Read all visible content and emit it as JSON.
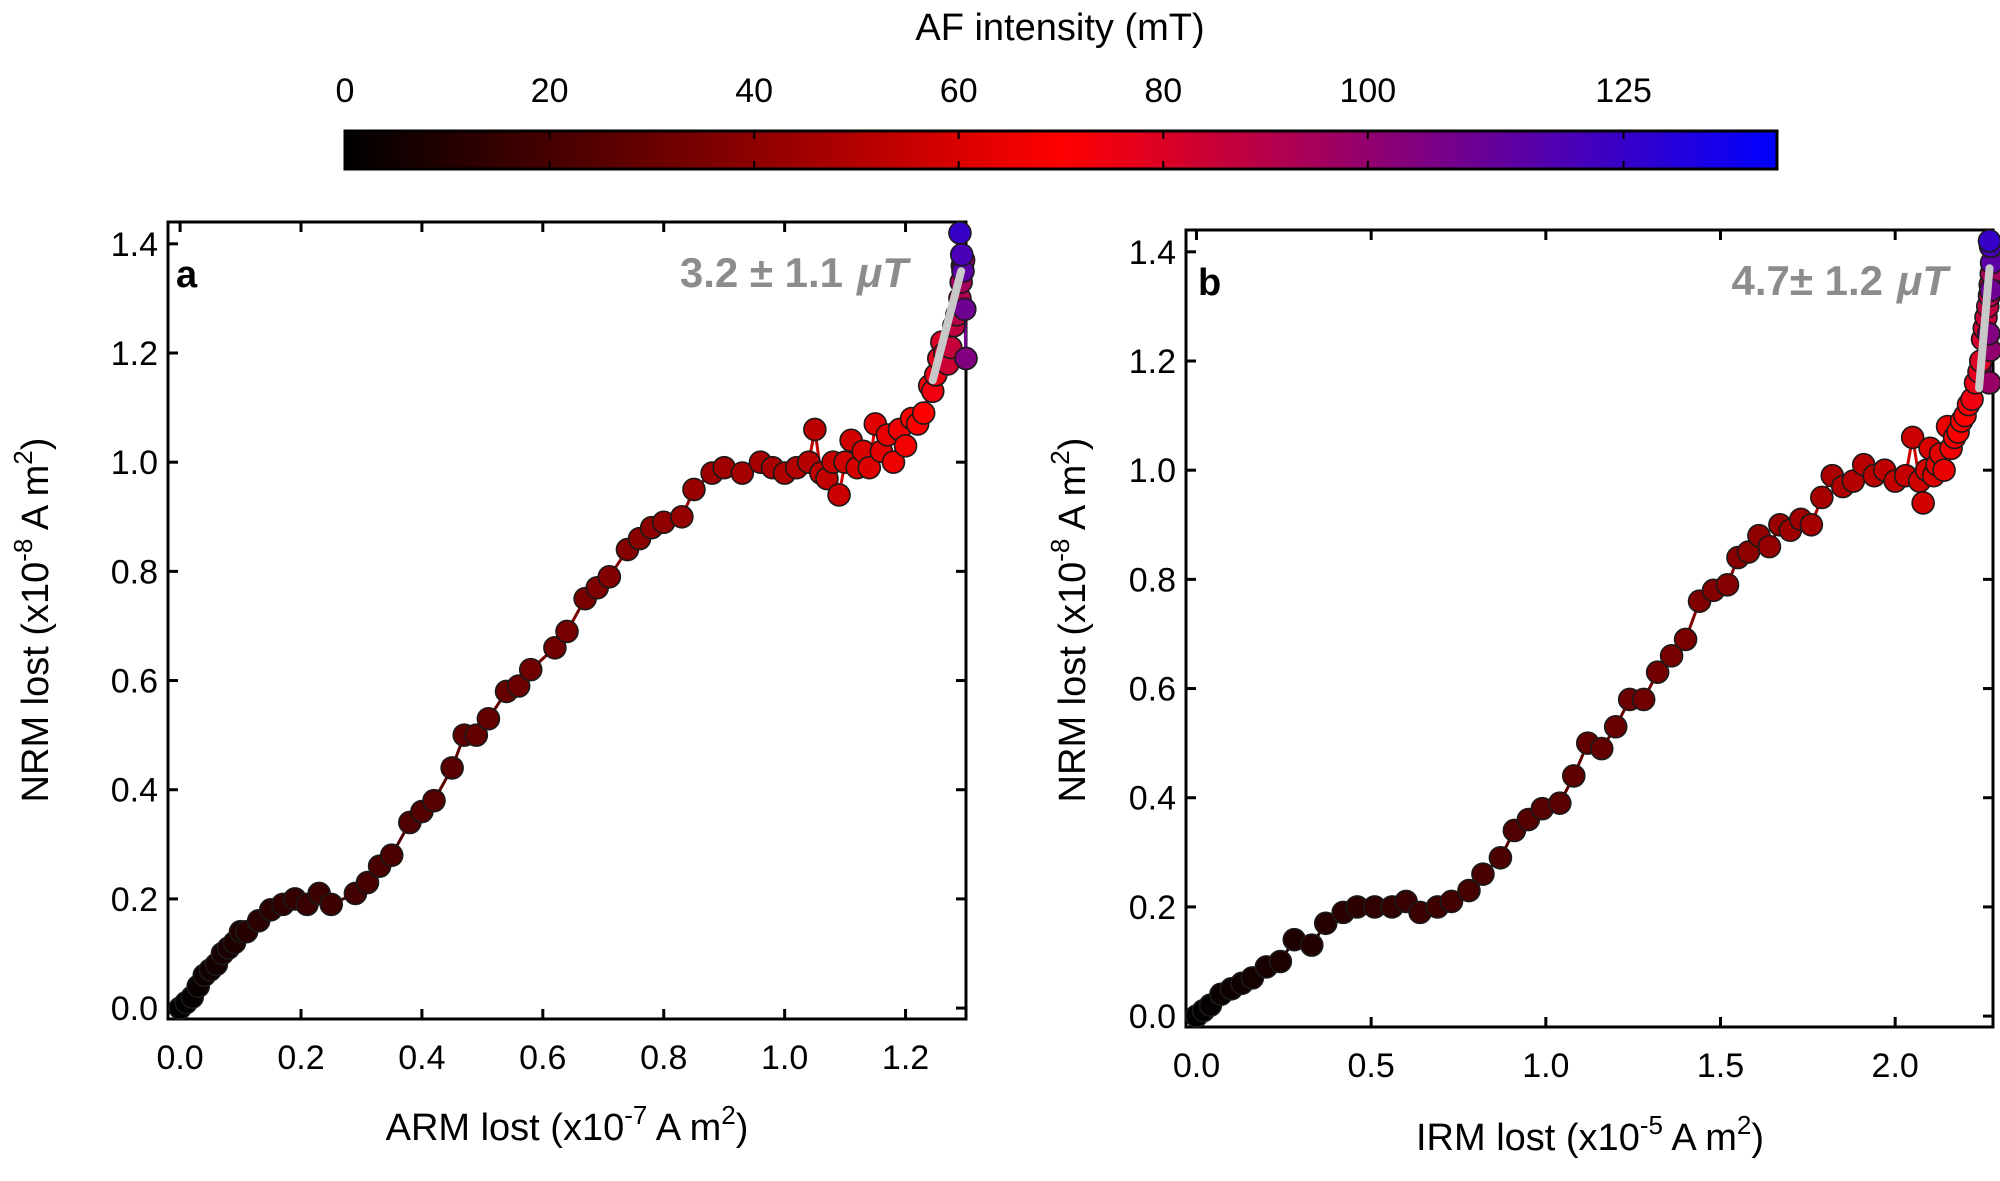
{
  "colorbar": {
    "title": "AF intensity (mT)",
    "tick_labels": [
      "0",
      "20",
      "40",
      "60",
      "80",
      "100",
      "125"
    ],
    "tick_values": [
      0,
      20,
      40,
      60,
      80,
      100,
      125
    ],
    "ticks": [
      {
        "label": "0",
        "value": 0
      },
      {
        "label": "20",
        "value": 20
      },
      {
        "label": "40",
        "value": 40
      },
      {
        "label": "60",
        "value": 60
      },
      {
        "label": "80",
        "value": 80
      },
      {
        "label": "100",
        "value": 100
      },
      {
        "label": "125",
        "value": 125
      }
    ],
    "colormap": [
      "#000000",
      "#7a0000",
      "#ff0000",
      "#800080",
      "#0000ff"
    ],
    "range": [
      0,
      140
    ]
  },
  "chart_data": [
    {
      "type": "scatter",
      "panel_label": "a",
      "annotation": "3.2 ± 1.1 μT",
      "annotation_main": "3.2 ± 1.1",
      "annotation_unit": "μT",
      "xlabel": "ARM lost (x10",
      "xlabel_exp": "-7",
      "xlabel_unit": " A m",
      "xlabel_unit_exp": "2",
      "xlabel_close": ")",
      "ylabel": "NRM lost (x10",
      "ylabel_exp": "-8",
      "ylabel_unit": " A m",
      "ylabel_unit_exp": "2",
      "ylabel_close": ")",
      "xlim": [
        -0.02,
        1.3
      ],
      "ylim": [
        -0.02,
        1.44
      ],
      "xticks": [
        0.0,
        0.2,
        0.4,
        0.6,
        0.8,
        1.0,
        1.2
      ],
      "xtick_labels": [
        "0.0",
        "0.2",
        "0.4",
        "0.6",
        "0.8",
        "1.0",
        "1.2"
      ],
      "yticks": [
        0.0,
        0.2,
        0.4,
        0.6,
        0.8,
        1.0,
        1.2,
        1.4
      ],
      "ytick_labels": [
        "0.0",
        "0.2",
        "0.4",
        "0.6",
        "0.8",
        "1.0",
        "1.2",
        "1.4"
      ],
      "fit_line": {
        "x": [
          1.245,
          1.292
        ],
        "y": [
          1.15,
          1.35
        ],
        "color": "#c8c8c8"
      },
      "x": [
        0.0,
        0.01,
        0.02,
        0.03,
        0.04,
        0.05,
        0.06,
        0.07,
        0.08,
        0.09,
        0.1,
        0.11,
        0.13,
        0.15,
        0.17,
        0.19,
        0.21,
        0.23,
        0.25,
        0.29,
        0.31,
        0.33,
        0.35,
        0.38,
        0.4,
        0.42,
        0.45,
        0.47,
        0.49,
        0.51,
        0.54,
        0.56,
        0.58,
        0.62,
        0.64,
        0.67,
        0.69,
        0.71,
        0.74,
        0.76,
        0.78,
        0.8,
        0.83,
        0.85,
        0.88,
        0.9,
        0.93,
        0.96,
        0.98,
        1.0,
        1.02,
        1.04,
        1.05,
        1.06,
        1.07,
        1.08,
        1.09,
        1.1,
        1.11,
        1.12,
        1.13,
        1.14,
        1.15,
        1.16,
        1.17,
        1.18,
        1.19,
        1.2,
        1.21,
        1.22,
        1.23,
        1.24,
        1.245,
        1.25,
        1.255,
        1.26,
        1.265,
        1.27,
        1.275,
        1.28,
        1.285,
        1.29,
        1.292,
        1.294,
        1.296,
        1.3,
        1.298,
        1.295,
        1.293,
        1.29
      ],
      "y": [
        0.0,
        0.01,
        0.02,
        0.04,
        0.06,
        0.07,
        0.08,
        0.1,
        0.11,
        0.12,
        0.14,
        0.14,
        0.16,
        0.18,
        0.19,
        0.2,
        0.19,
        0.21,
        0.19,
        0.21,
        0.23,
        0.26,
        0.28,
        0.34,
        0.36,
        0.38,
        0.44,
        0.5,
        0.5,
        0.53,
        0.58,
        0.59,
        0.62,
        0.66,
        0.69,
        0.75,
        0.77,
        0.79,
        0.84,
        0.86,
        0.88,
        0.89,
        0.9,
        0.95,
        0.98,
        0.99,
        0.98,
        1.0,
        0.99,
        0.98,
        0.99,
        1.0,
        1.06,
        0.98,
        0.97,
        1.0,
        0.94,
        1.0,
        1.04,
        0.99,
        1.02,
        0.99,
        1.07,
        1.02,
        1.05,
        1.0,
        1.06,
        1.03,
        1.08,
        1.07,
        1.09,
        1.14,
        1.13,
        1.16,
        1.19,
        1.22,
        1.2,
        1.18,
        1.21,
        1.25,
        1.27,
        1.3,
        1.33,
        1.36,
        1.37,
        1.19,
        1.28,
        1.35,
        1.38,
        1.42
      ],
      "af_mT": [
        0,
        1,
        2,
        3,
        4,
        5,
        6,
        7,
        8,
        9,
        10,
        11,
        12,
        13,
        14,
        15,
        16,
        17,
        18,
        19,
        20,
        21,
        22,
        23,
        24,
        25,
        26,
        27,
        28,
        29,
        30,
        31,
        32,
        33,
        34,
        35,
        36,
        37,
        38,
        39,
        40,
        41,
        42,
        43,
        44,
        45,
        46,
        47,
        48,
        49,
        50,
        51,
        52,
        53,
        54,
        55,
        56,
        57,
        58,
        59,
        60,
        61,
        62,
        63,
        64,
        65,
        66,
        67,
        68,
        69,
        70,
        72,
        74,
        76,
        78,
        80,
        82,
        84,
        86,
        88,
        90,
        92,
        95,
        98,
        100,
        105,
        110,
        115,
        120,
        125
      ]
    },
    {
      "type": "scatter",
      "panel_label": "b",
      "annotation": "4.7± 1.2 μT",
      "annotation_main": "4.7± 1.2",
      "annotation_unit": "μT",
      "xlabel": "IRM lost (x10",
      "xlabel_exp": "-5",
      "xlabel_unit": " A m",
      "xlabel_unit_exp": "2",
      "xlabel_close": ")",
      "ylabel": "NRM lost (x10",
      "ylabel_exp": "-8",
      "ylabel_unit": " A m",
      "ylabel_unit_exp": "2",
      "ylabel_close": ")",
      "xlim": [
        -0.03,
        2.28
      ],
      "ylim": [
        -0.02,
        1.44
      ],
      "xticks": [
        0.0,
        0.5,
        1.0,
        1.5,
        2.0
      ],
      "xtick_labels": [
        "0.0",
        "0.5",
        "1.0",
        "1.5",
        "2.0"
      ],
      "yticks": [
        0.0,
        0.2,
        0.4,
        0.6,
        0.8,
        1.0,
        1.2,
        1.4
      ],
      "ytick_labels": [
        "0.0",
        "0.2",
        "0.4",
        "0.6",
        "0.8",
        "1.0",
        "1.2",
        "1.4"
      ],
      "fit_line": {
        "x": [
          2.24,
          2.27
        ],
        "y": [
          1.15,
          1.37
        ],
        "color": "#c8c8c8"
      },
      "x": [
        0.0,
        0.02,
        0.04,
        0.07,
        0.1,
        0.13,
        0.16,
        0.2,
        0.24,
        0.28,
        0.33,
        0.37,
        0.42,
        0.46,
        0.51,
        0.56,
        0.6,
        0.64,
        0.69,
        0.73,
        0.78,
        0.82,
        0.87,
        0.91,
        0.95,
        0.99,
        1.04,
        1.08,
        1.12,
        1.16,
        1.2,
        1.24,
        1.28,
        1.32,
        1.36,
        1.4,
        1.44,
        1.48,
        1.52,
        1.55,
        1.58,
        1.61,
        1.64,
        1.67,
        1.7,
        1.73,
        1.76,
        1.79,
        1.82,
        1.85,
        1.88,
        1.91,
        1.94,
        1.97,
        2.0,
        2.03,
        2.05,
        2.07,
        2.08,
        2.09,
        2.1,
        2.11,
        2.12,
        2.13,
        2.14,
        2.15,
        2.16,
        2.17,
        2.18,
        2.19,
        2.2,
        2.21,
        2.22,
        2.23,
        2.24,
        2.245,
        2.25,
        2.255,
        2.26,
        2.265,
        2.27,
        2.272,
        2.275,
        2.27,
        2.272,
        2.268,
        2.274,
        2.276,
        2.273,
        2.27
      ],
      "y": [
        0.0,
        0.01,
        0.02,
        0.04,
        0.05,
        0.06,
        0.07,
        0.09,
        0.1,
        0.14,
        0.13,
        0.17,
        0.19,
        0.2,
        0.2,
        0.2,
        0.21,
        0.19,
        0.2,
        0.21,
        0.23,
        0.26,
        0.29,
        0.34,
        0.36,
        0.38,
        0.39,
        0.44,
        0.5,
        0.49,
        0.53,
        0.58,
        0.58,
        0.63,
        0.66,
        0.69,
        0.76,
        0.78,
        0.79,
        0.84,
        0.85,
        0.88,
        0.86,
        0.9,
        0.89,
        0.91,
        0.9,
        0.95,
        0.99,
        0.97,
        0.98,
        1.01,
        0.99,
        1.0,
        0.98,
        0.99,
        1.06,
        0.98,
        0.94,
        1.0,
        1.04,
        0.99,
        1.01,
        1.03,
        1.0,
        1.08,
        1.04,
        1.06,
        1.07,
        1.09,
        1.1,
        1.12,
        1.13,
        1.16,
        1.18,
        1.2,
        1.24,
        1.26,
        1.28,
        1.3,
        1.32,
        1.34,
        1.36,
        1.16,
        1.22,
        1.25,
        1.33,
        1.38,
        1.41,
        1.42
      ],
      "af_mT": [
        0,
        1,
        2,
        3,
        4,
        5,
        6,
        7,
        8,
        9,
        10,
        11,
        12,
        13,
        14,
        15,
        16,
        17,
        18,
        19,
        20,
        21,
        22,
        23,
        24,
        25,
        26,
        27,
        28,
        29,
        30,
        31,
        32,
        33,
        34,
        35,
        36,
        37,
        38,
        39,
        40,
        41,
        42,
        43,
        44,
        45,
        46,
        47,
        48,
        49,
        50,
        51,
        52,
        53,
        54,
        55,
        56,
        57,
        58,
        59,
        60,
        61,
        62,
        63,
        64,
        65,
        66,
        67,
        68,
        69,
        70,
        72,
        74,
        76,
        78,
        80,
        82,
        84,
        86,
        88,
        90,
        92,
        95,
        98,
        100,
        105,
        110,
        115,
        120,
        125
      ]
    }
  ]
}
